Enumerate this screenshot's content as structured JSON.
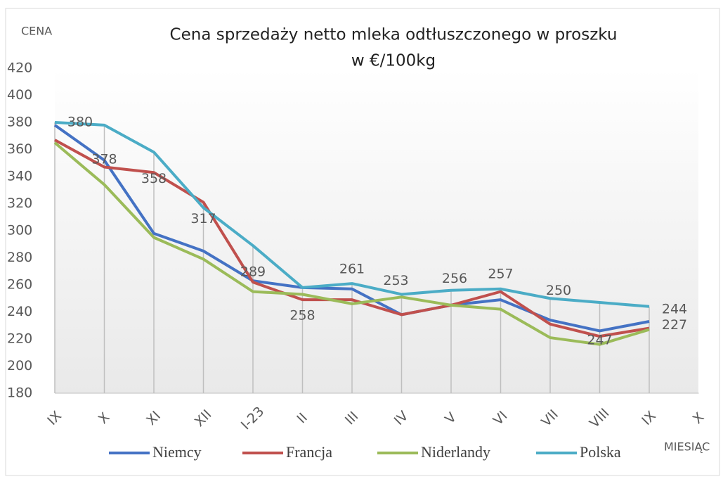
{
  "chart_data": {
    "type": "line",
    "title": [
      "Cena sprzedaży  netto  mleka  odtłuszczonego  w proszku",
      "w €/100kg"
    ],
    "y_label": "CENA",
    "x_label": "MIESIĄC",
    "categories": [
      "IX",
      "X",
      "XI",
      "XII",
      "I-23",
      "II",
      "III",
      "IV",
      "V",
      "VI",
      "VII",
      "VIII",
      "IX",
      "X"
    ],
    "ylim": [
      180,
      420
    ],
    "yticks": [
      180,
      200,
      220,
      240,
      260,
      280,
      300,
      320,
      340,
      360,
      380,
      400,
      420
    ],
    "series": [
      {
        "name": "Niemcy",
        "color": "#4472c4",
        "values": [
          378,
          352,
          298,
          285,
          263,
          258,
          257,
          238,
          245,
          249,
          234,
          226,
          233,
          null
        ]
      },
      {
        "name": "Francja",
        "color": "#c0504d",
        "values": [
          367,
          347,
          343,
          321,
          262,
          249,
          249,
          238,
          245,
          255,
          231,
          222,
          228,
          null
        ]
      },
      {
        "name": "Niderlandy",
        "color": "#9bbb59",
        "values": [
          365,
          334,
          295,
          279,
          255,
          253,
          246,
          251,
          245,
          242,
          221,
          216,
          227,
          null
        ],
        "value_labels": [
          null,
          null,
          null,
          null,
          null,
          null,
          null,
          null,
          null,
          null,
          null,
          null,
          "227",
          null
        ]
      },
      {
        "name": "Polska",
        "color": "#4bacc6",
        "values": [
          380,
          378,
          358,
          317,
          289,
          258,
          261,
          253,
          256,
          257,
          250,
          247,
          244,
          null
        ],
        "value_labels": [
          "380",
          "378",
          "358",
          "317",
          "289",
          "258",
          "261",
          "253",
          "256",
          "257",
          "250",
          "247",
          "244",
          null
        ]
      }
    ]
  }
}
